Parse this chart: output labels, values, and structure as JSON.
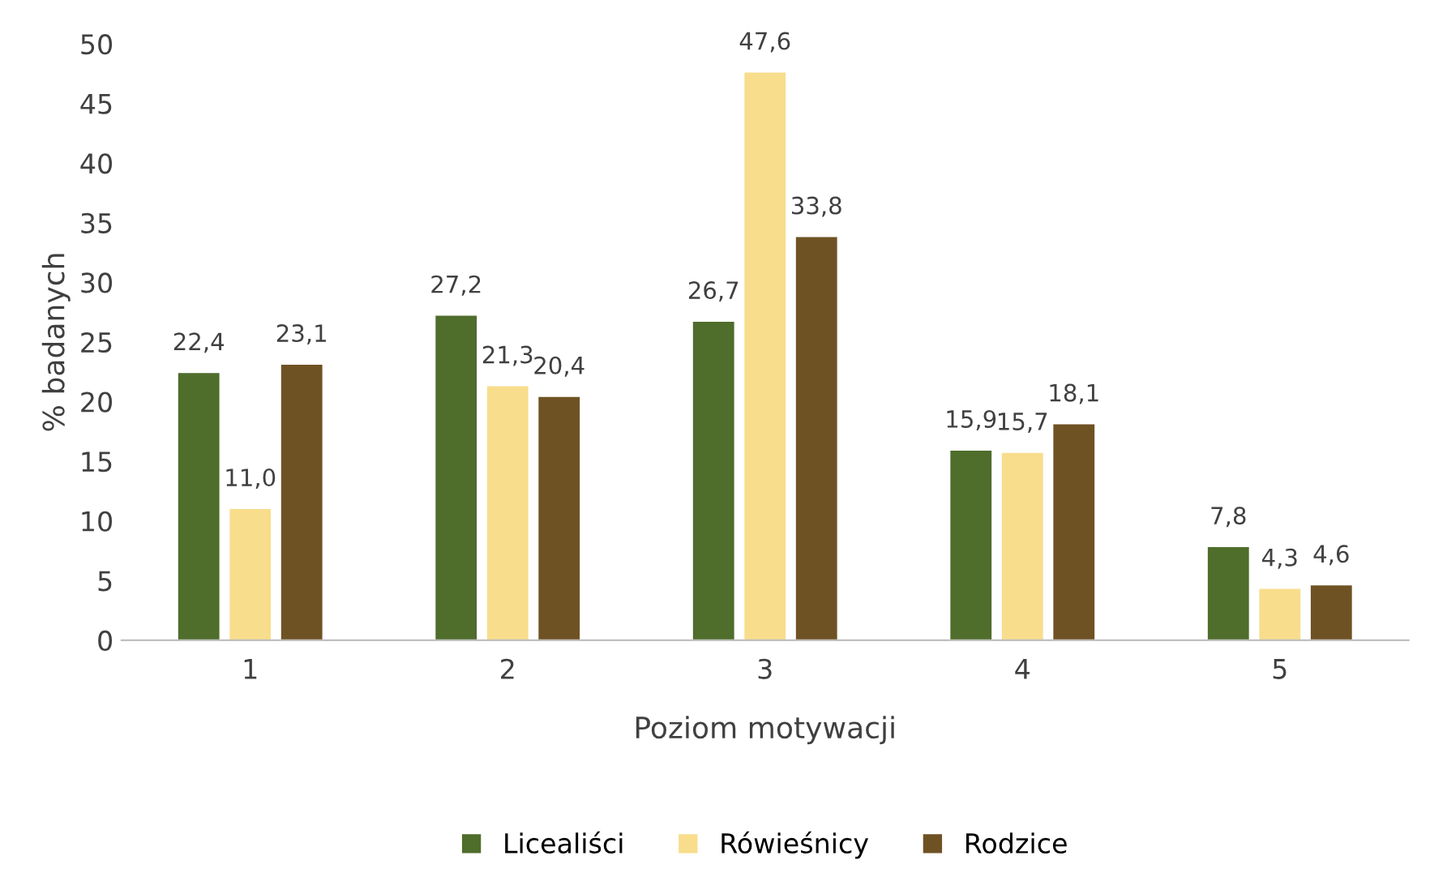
{
  "chart_data": {
    "type": "bar",
    "xlabel": "Poziom motywacji",
    "ylabel": "% badanych",
    "categories": [
      "1",
      "2",
      "3",
      "4",
      "5"
    ],
    "series": [
      {
        "name": "Licealiści",
        "color": "#4f6d2b",
        "values": [
          22.4,
          27.2,
          26.7,
          15.9,
          7.8
        ],
        "value_labels": [
          "22,4",
          "27,2",
          "26,7",
          "15,9",
          "7,8"
        ]
      },
      {
        "name": "Rówieśnicy",
        "color": "#f8dd8c",
        "values": [
          11.0,
          21.3,
          47.6,
          15.7,
          4.3
        ],
        "value_labels": [
          "11,0",
          "21,3",
          "47,6",
          "15,7",
          "4,3"
        ]
      },
      {
        "name": "Rodzice",
        "color": "#6f5223",
        "values": [
          23.1,
          20.4,
          33.8,
          18.1,
          4.6
        ],
        "value_labels": [
          "23,1",
          "20,4",
          "33,8",
          "18,1",
          "4,6"
        ]
      }
    ],
    "ylim": [
      0,
      50
    ],
    "yticks": [
      0,
      5,
      10,
      15,
      20,
      25,
      30,
      35,
      40,
      45,
      50
    ],
    "grid": false,
    "legend": "bottom"
  }
}
